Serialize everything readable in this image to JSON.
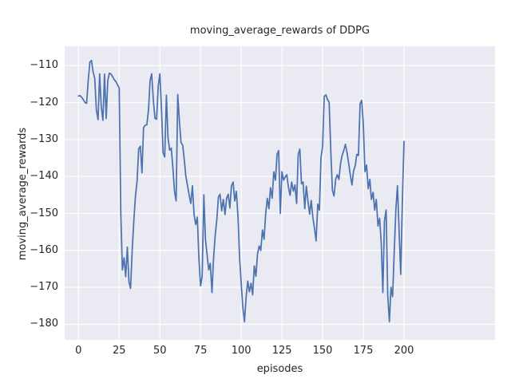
{
  "title": "moving_average_rewards of DDPG",
  "xlabel": "episodes",
  "ylabel": "moving_average_rewards",
  "x_tick_labels": [
    "0",
    "25",
    "50",
    "75",
    "100",
    "125",
    "150",
    "175",
    "200"
  ],
  "y_tick_labels": [
    "−110",
    "−120",
    "−130",
    "−140",
    "−150",
    "−160",
    "−170",
    "−180"
  ],
  "colors": {
    "line": "#4C72B0",
    "axes_background": "#EAEAF2",
    "grid": "#FFFFFF",
    "text": "#262626",
    "figure_background": "#FFFFFF"
  },
  "chart_data": {
    "type": "line",
    "title": "moving_average_rewards of DDPG",
    "xlabel": "episodes",
    "ylabel": "moving_average_rewards",
    "legend": null,
    "grid": true,
    "x_min": 0,
    "x_max": 200,
    "x_ticks": [
      0,
      25,
      50,
      75,
      100,
      125,
      150,
      175,
      200
    ],
    "y_ticks": [
      -110,
      -120,
      -130,
      -140,
      -150,
      -160,
      -170,
      -180
    ],
    "xlim": [
      -8.5,
      256
    ],
    "ylim": [
      -184.2,
      -104.75
    ],
    "series_name": "moving average reward per episode",
    "values": [
      -118.2,
      -118.1,
      -118.6,
      -119.2,
      -120.0,
      -120.2,
      -114.0,
      -109.0,
      -108.6,
      -111.7,
      -113.5,
      -122.0,
      -124.6,
      -112.2,
      -121.0,
      -124.8,
      -112.3,
      -124.3,
      -114.0,
      -112.0,
      -112.3,
      -113.0,
      -113.8,
      -114.3,
      -115.2,
      -116.0,
      -150.0,
      -165.3,
      -162.0,
      -167.1,
      -159.1,
      -168.5,
      -170.3,
      -159.9,
      -152.0,
      -145.5,
      -141.2,
      -132.5,
      -131.8,
      -139.0,
      -126.8,
      -126.1,
      -126.0,
      -122.0,
      -114.0,
      -112.2,
      -119.5,
      -124.3,
      -124.5,
      -115.5,
      -112.2,
      -122.0,
      -133.6,
      -134.7,
      -118.0,
      -129.5,
      -132.9,
      -132.3,
      -137.6,
      -144.1,
      -146.6,
      -117.8,
      -125.0,
      -130.8,
      -131.5,
      -135.5,
      -140.0,
      -142.5,
      -145.0,
      -147.3,
      -142.5,
      -150.2,
      -153.0,
      -151.0,
      -162.0,
      -169.6,
      -167.0,
      -145.0,
      -157.0,
      -161.0,
      -165.3,
      -163.5,
      -171.4,
      -162.0,
      -156.0,
      -151.5,
      -145.5,
      -144.8,
      -149.3,
      -146.2,
      -150.3,
      -145.9,
      -144.8,
      -148.5,
      -142.5,
      -141.5,
      -146.6,
      -144.0,
      -151.0,
      -162.0,
      -169.0,
      -175.5,
      -179.3,
      -172.5,
      -168.3,
      -171.2,
      -168.9,
      -172.0,
      -164.2,
      -167.0,
      -161.0,
      -158.8,
      -160.0,
      -154.5,
      -157.0,
      -150.2,
      -145.9,
      -148.7,
      -143.0,
      -145.9,
      -138.7,
      -141.0,
      -134.0,
      -133.0,
      -150.0,
      -138.7,
      -141.0,
      -140.1,
      -139.5,
      -143.0,
      -145.1,
      -141.5,
      -144.0,
      -142.3,
      -147.3,
      -134.0,
      -132.6,
      -142.0,
      -141.5,
      -148.7,
      -142.6,
      -146.6,
      -150.2,
      -146.5,
      -151.0,
      -154.0,
      -157.4,
      -147.5,
      -149.1,
      -135.0,
      -131.7,
      -118.3,
      -117.9,
      -119.2,
      -119.9,
      -133.0,
      -143.7,
      -145.3,
      -140.8,
      -139.5,
      -140.8,
      -136.5,
      -134.3,
      -132.9,
      -131.3,
      -133.6,
      -136.5,
      -139.5,
      -142.3,
      -138.5,
      -137.2,
      -134.0,
      -134.3,
      -120.3,
      -119.4,
      -125.7,
      -138.7,
      -136.9,
      -143.3,
      -140.8,
      -146.2,
      -144.3,
      -149.1,
      -146.2,
      -153.4,
      -151.3,
      -158.0,
      -171.4,
      -152.0,
      -149.1,
      -172.0,
      -179.3,
      -170.0,
      -172.5,
      -160.0,
      -149.0,
      -142.5,
      -155.0,
      -166.5,
      -146.0,
      -130.5
    ]
  }
}
